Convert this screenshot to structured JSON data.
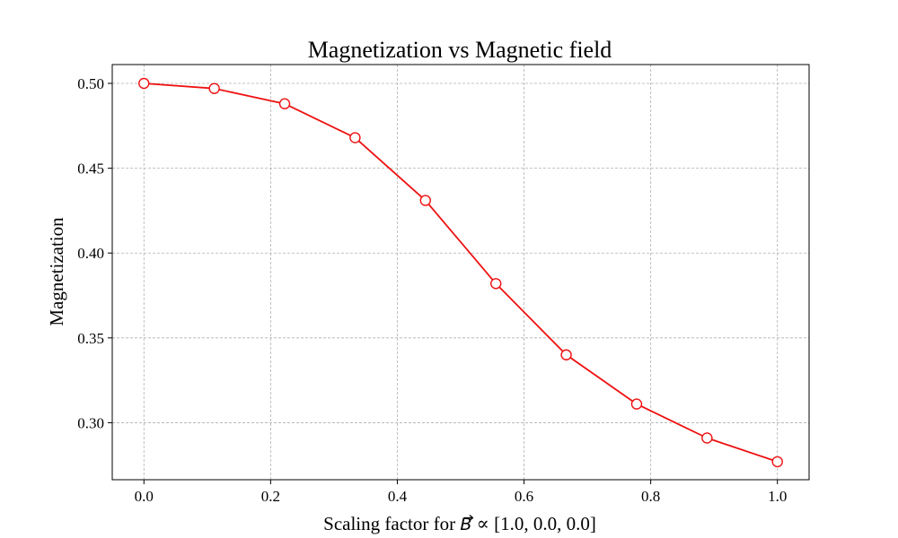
{
  "chart_data": {
    "type": "line",
    "title": "Magnetization vs Magnetic field",
    "xlabel": {
      "prefix": "Scaling factor for ",
      "symbol": "B",
      "suffix": " ∝ [1.0, 0.0, 0.0]"
    },
    "ylabel": "Magnetization",
    "xlim": [
      -0.05,
      1.05
    ],
    "ylim": [
      0.2664,
      0.5111
    ],
    "xticks": [
      0.0,
      0.2,
      0.4,
      0.6,
      0.8,
      1.0
    ],
    "xtick_labels": [
      "0.0",
      "0.2",
      "0.4",
      "0.6",
      "0.8",
      "1.0"
    ],
    "yticks": [
      0.3,
      0.35,
      0.4,
      0.45,
      0.5
    ],
    "ytick_labels": [
      "0.30",
      "0.35",
      "0.40",
      "0.45",
      "0.50"
    ],
    "grid": true,
    "legend": "none",
    "series": [
      {
        "color": "#ee1111",
        "marker": "open-circle",
        "x": [
          0.0,
          0.1111,
          0.2222,
          0.3333,
          0.4444,
          0.5556,
          0.6667,
          0.7778,
          0.8889,
          1.0
        ],
        "y": [
          0.5,
          0.497,
          0.488,
          0.468,
          0.431,
          0.382,
          0.34,
          0.311,
          0.291,
          0.277
        ]
      }
    ]
  }
}
